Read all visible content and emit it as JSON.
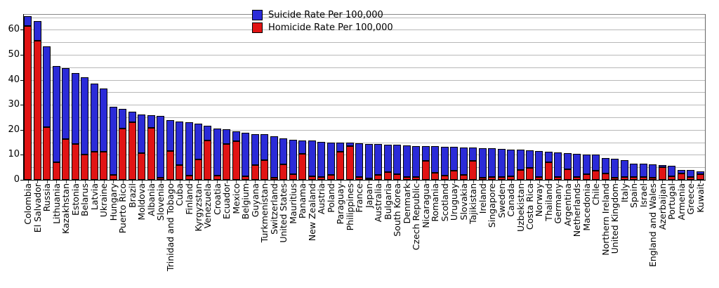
{
  "chart_data": {
    "type": "bar",
    "stacked": true,
    "orientation": "vertical",
    "title": "",
    "xlabel": "",
    "ylabel": "",
    "ylim": [
      0,
      66.5
    ],
    "y_major_ticks": [
      0,
      10,
      20,
      30,
      40,
      50,
      60
    ],
    "gridline_step": 5,
    "grid": "on",
    "legend_position": "top-center",
    "legend": [
      {
        "label": "Suicide Rate Per 100,000",
        "color": "#2b2bd8"
      },
      {
        "label": "Homicide Rate Per 100,000",
        "color": "#e11414"
      }
    ],
    "stack_order": "homicide bottom (red), suicide top (blue), sorted by combined total descending",
    "categories": [
      "Colombia",
      "El Salvador",
      "Russia",
      "Lithuania",
      "Kazakhstan",
      "Estonia",
      "Belarus",
      "Latvia",
      "Ukraine",
      "Hungary",
      "Puerto Rico",
      "Brazil",
      "Moldova",
      "Albania",
      "Slovenia",
      "Trinidad and Tobago",
      "Cuba",
      "Finland",
      "Kyrgyzstan",
      "Venezuela",
      "Croatia",
      "Ecuador",
      "Mexico",
      "Belgium",
      "Guyana",
      "Turkmenistan",
      "Switzerland",
      "United States",
      "Mauritius",
      "Panama",
      "New Zealand",
      "Austria",
      "Poland",
      "Paraguay",
      "Philippines",
      "France",
      "Japan",
      "Australia",
      "Bulgaria",
      "South Korea",
      "Denmark",
      "Czech Republic",
      "Nicaragua",
      "Romania",
      "Scotland",
      "Uruguay",
      "Slovakia",
      "Tajikistan",
      "Ireland",
      "Singapore",
      "Sweden",
      "Canada",
      "Uzbekistan",
      "Costa Rica",
      "Norway",
      "Thailand",
      "Germany",
      "Argentina",
      "Netherlands",
      "Macedonia",
      "Chile",
      "Northern Ireland",
      "United Kingdom",
      "Italy",
      "Spain",
      "Israel",
      "England and Wales",
      "Azerbaijan",
      "Portugal",
      "Armenia",
      "Greece",
      "Kuwait"
    ],
    "series": [
      {
        "name": "Homicide Rate Per 100,000",
        "color": "#e11414",
        "values": [
          61.6,
          55.6,
          21.2,
          7.0,
          16.4,
          14.4,
          10.2,
          11.1,
          11.2,
          2.0,
          20.4,
          23.0,
          10.6,
          20.8,
          0.9,
          11.6,
          5.9,
          1.8,
          8.2,
          15.6,
          1.8,
          14.4,
          15.5,
          1.4,
          5.9,
          7.8,
          0.9,
          6.1,
          2.3,
          10.4,
          1.3,
          1.0,
          1.9,
          11.3,
          13.4,
          1.1,
          0.6,
          1.9,
          3.1,
          2.2,
          1.2,
          1.2,
          7.5,
          2.8,
          1.7,
          3.6,
          1.9,
          7.5,
          0.9,
          1.2,
          1.0,
          1.4,
          4.0,
          4.8,
          1.0,
          7.0,
          1.2,
          4.2,
          1.2,
          2.2,
          3.6,
          2.4,
          0.8,
          1.0,
          1.0,
          1.2,
          0.8,
          5.0,
          1.5,
          2.5,
          1.1,
          2.2
        ]
      },
      {
        "name": "Suicide Rate Per 100,000",
        "color": "#2b2bd8",
        "values": [
          3.8,
          8.0,
          32.2,
          38.5,
          28.2,
          28.2,
          30.8,
          27.5,
          25.4,
          27.2,
          8.0,
          4.2,
          15.6,
          5.0,
          24.6,
          12.4,
          17.3,
          21.2,
          14.2,
          6.1,
          18.8,
          5.9,
          3.9,
          17.4,
          12.4,
          10.4,
          16.4,
          10.6,
          13.7,
          5.4,
          14.3,
          14.3,
          13.1,
          3.6,
          1.4,
          13.5,
          13.8,
          12.3,
          11.0,
          11.8,
          12.7,
          12.4,
          6.0,
          10.6,
          11.6,
          9.6,
          11.1,
          5.4,
          11.8,
          11.4,
          11.4,
          10.8,
          8.0,
          6.9,
          10.4,
          4.2,
          9.8,
          6.6,
          9.3,
          8.0,
          6.4,
          6.4,
          7.5,
          6.9,
          5.6,
          5.3,
          5.4,
          1.0,
          4.0,
          1.5,
          2.7,
          1.2
        ]
      }
    ]
  }
}
